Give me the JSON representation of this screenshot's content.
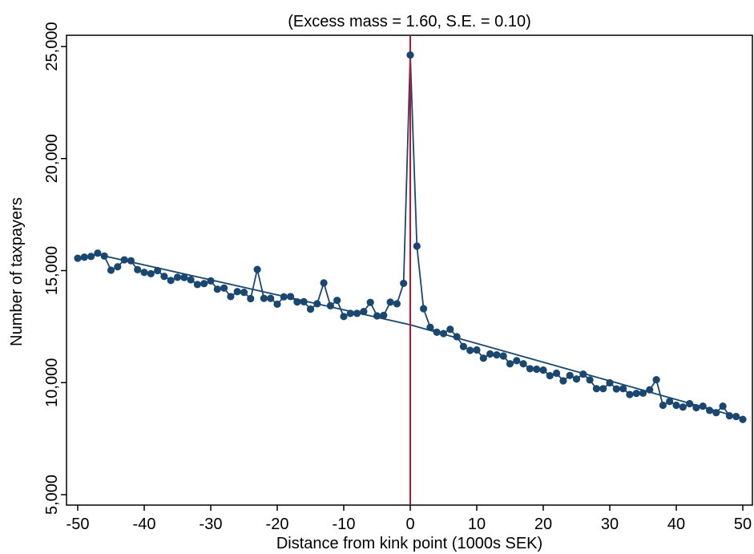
{
  "chart_data": {
    "type": "line",
    "title": "(Excess mass = 1.60, S.E. = 0.10)",
    "xlabel": "Distance from kink point (1000s SEK)",
    "ylabel": "Number of taxpayers",
    "xlim": [
      -50,
      50
    ],
    "ylim": [
      5000,
      25500
    ],
    "xticks": [
      -50,
      -40,
      -30,
      -20,
      -10,
      0,
      10,
      20,
      30,
      40,
      50
    ],
    "xtick_labels": [
      "-50",
      "-40",
      "-30",
      "-20",
      "-10",
      "0",
      "10",
      "20",
      "30",
      "40",
      "50"
    ],
    "yticks": [
      5000,
      10000,
      15000,
      20000,
      25000
    ],
    "ytick_labels": [
      "5,000",
      "10,000",
      "15,000",
      "20,000",
      "25,000"
    ],
    "grid": false,
    "colors": {
      "series": "#1a476f",
      "kink_line": "#c8102e"
    },
    "kink_x": 0,
    "series": [
      {
        "x": [
          -50,
          -49,
          -48,
          -47,
          -46,
          -45,
          -44,
          -43,
          -42,
          -41,
          -40,
          -39,
          -38,
          -37,
          -36,
          -35,
          -34,
          -33,
          -32,
          -31,
          -30,
          -29,
          -28,
          -27,
          -26,
          -25,
          -24,
          -23,
          -22,
          -21,
          -20,
          -19,
          -18,
          -17,
          -16,
          -15,
          -14,
          -13,
          -12,
          -11,
          -10,
          -9,
          -8,
          -7,
          -6,
          -5,
          -4,
          -3,
          -2,
          -1,
          0,
          1,
          2,
          3,
          4,
          5,
          6,
          7,
          8,
          9,
          10,
          11,
          12,
          13,
          14,
          15,
          16,
          17,
          18,
          19,
          20,
          21,
          22,
          23,
          24,
          25,
          26,
          27,
          28,
          29,
          30,
          31,
          32,
          33,
          34,
          35,
          36,
          37,
          38,
          39,
          40,
          41,
          42,
          43,
          44,
          45,
          46,
          47,
          48,
          49,
          50
        ],
        "values": [
          15550,
          15600,
          15630,
          15780,
          15650,
          15020,
          15170,
          15480,
          15440,
          15040,
          14920,
          14860,
          15000,
          14740,
          14560,
          14700,
          14690,
          14590,
          14380,
          14420,
          14540,
          14170,
          14220,
          13840,
          14060,
          14030,
          13750,
          15050,
          13760,
          13760,
          13500,
          13830,
          13840,
          13600,
          13610,
          13280,
          13520,
          14450,
          13430,
          13670,
          12950,
          13090,
          13090,
          13170,
          13580,
          12980,
          13000,
          13590,
          13520,
          14430,
          24620,
          16090,
          13300,
          12470,
          12250,
          12190,
          12380,
          12050,
          11610,
          11440,
          11460,
          11090,
          11280,
          11240,
          11190,
          10840,
          10980,
          10840,
          10620,
          10600,
          10560,
          10310,
          10420,
          10080,
          10320,
          10160,
          10380,
          10120,
          9730,
          9730,
          9990,
          9720,
          9730,
          9470,
          9520,
          9530,
          9680,
          10130,
          8990,
          9160,
          8990,
          8910,
          9060,
          8880,
          8950,
          8760,
          8660,
          8950,
          8520,
          8490,
          8360
        ]
      },
      {
        "x": [
          -50,
          -47,
          0,
          50
        ],
        "values": [
          15480,
          15720,
          12580,
          8410
        ]
      }
    ]
  }
}
